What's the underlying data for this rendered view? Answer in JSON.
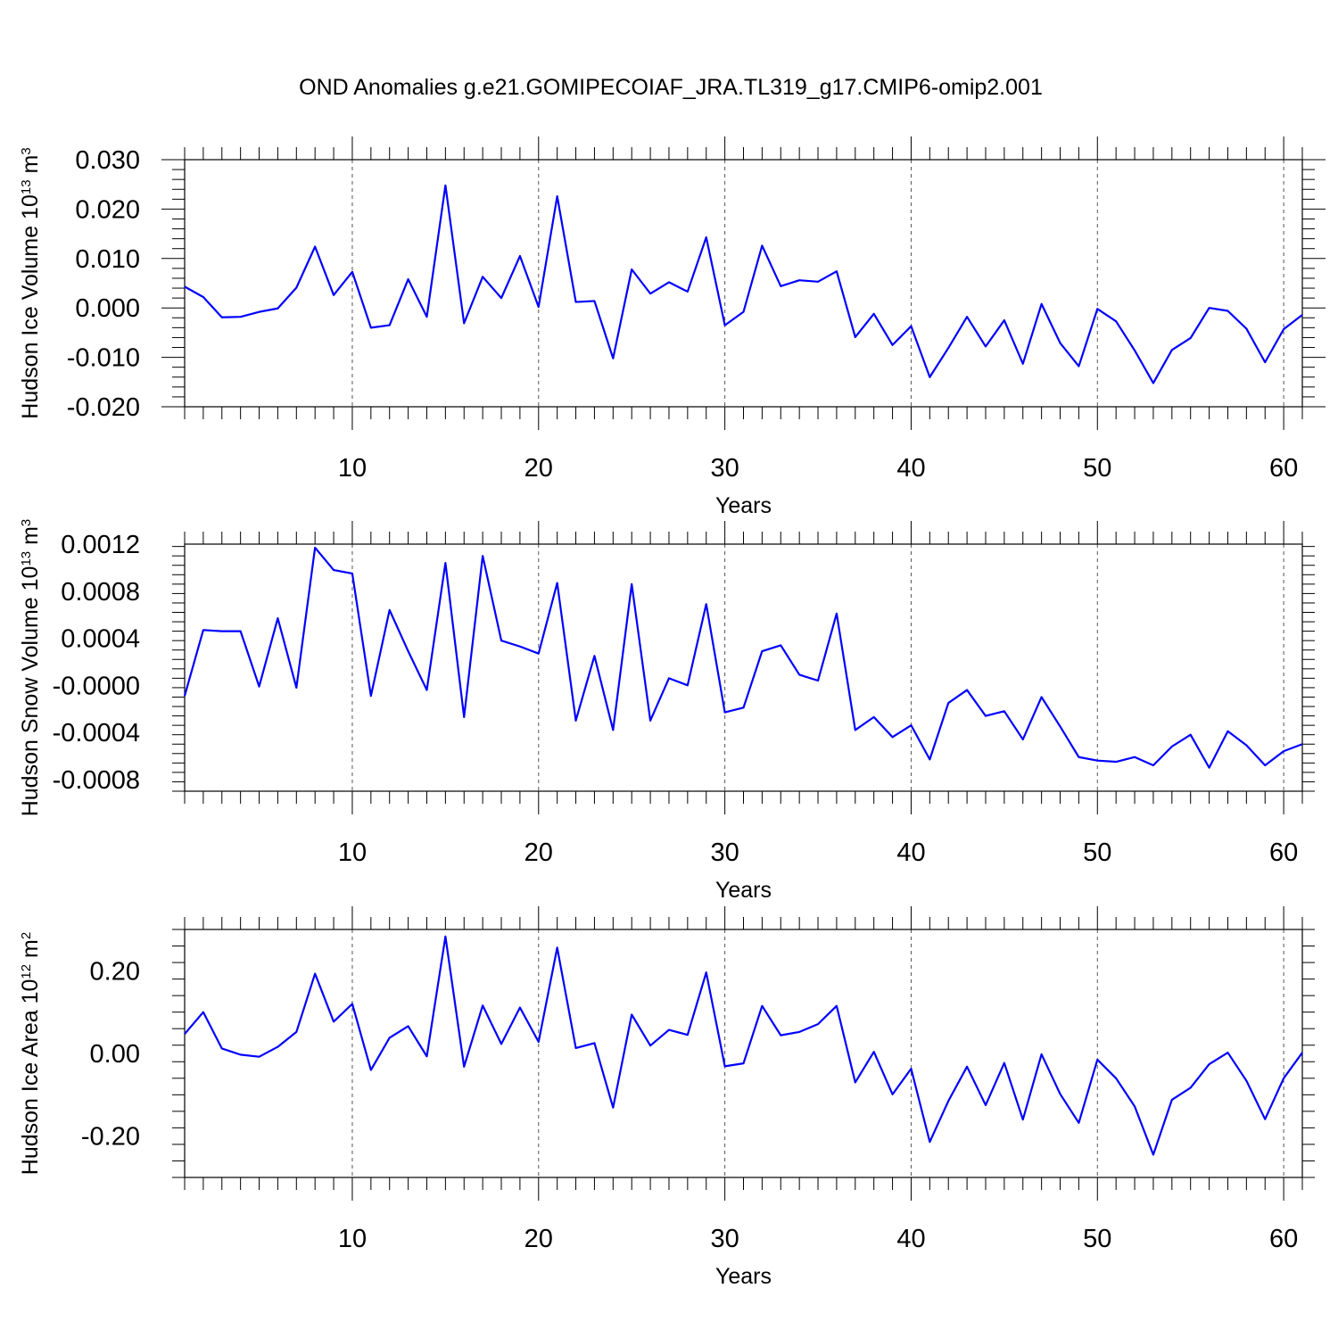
{
  "title": "OND Anomalies g.e21.GOMIPECOIAF_JRA.TL319_g17.CMIP6-omip2.001",
  "chart_data": [
    {
      "type": "line",
      "ylabel": {
        "text": "Hudson Ice Volume 10",
        "exp": "13",
        "unit": " m",
        "unit_exp": "3"
      },
      "xlabel": "Years",
      "xlim": [
        1,
        61
      ],
      "ylim": [
        -0.02,
        0.03
      ],
      "yticks": [
        -0.02,
        -0.01,
        0.0,
        0.01,
        0.02,
        0.03
      ],
      "ytick_labels": [
        "-0.020",
        "-0.010",
        "0.000",
        "0.010",
        "0.020",
        "0.030"
      ],
      "xticks": [
        10,
        20,
        30,
        40,
        50,
        60
      ],
      "xtick_labels": [
        "10",
        "20",
        "30",
        "40",
        "50",
        "60"
      ],
      "color": "#0000ff",
      "values": [
        0.0043,
        0.0022,
        -0.0019,
        -0.0018,
        -0.0008,
        -0.0001,
        0.0041,
        0.0124,
        0.0026,
        0.0073,
        -0.004,
        -0.0035,
        0.0058,
        -0.0018,
        0.0248,
        -0.0031,
        0.0063,
        0.002,
        0.0105,
        0.0002,
        0.0226,
        0.0012,
        0.0014,
        -0.0102,
        0.0078,
        0.0029,
        0.0052,
        0.0033,
        0.0143,
        -0.0035,
        -0.0008,
        0.0126,
        0.0044,
        0.0056,
        0.0053,
        0.0074,
        -0.0059,
        -0.0012,
        -0.0075,
        -0.0037,
        -0.014,
        -0.0081,
        -0.0018,
        -0.0078,
        -0.0025,
        -0.0113,
        0.0008,
        -0.0071,
        -0.0118,
        -0.0002,
        -0.0027,
        -0.0086,
        -0.0152,
        -0.0085,
        -0.0061,
        0.0,
        -0.0006,
        -0.0042,
        -0.011,
        -0.0043,
        -0.0014
      ]
    },
    {
      "type": "line",
      "ylabel": {
        "text": "Hudson Snow Volume 10",
        "exp": "13",
        "unit": " m",
        "unit_exp": "3"
      },
      "xlabel": "Years",
      "xlim": [
        1,
        61
      ],
      "ylim": [
        -0.0009,
        0.0012
      ],
      "yticks": [
        -0.0008,
        -0.0004,
        0.0,
        0.0004,
        0.0008,
        0.0012
      ],
      "ytick_labels": [
        "-0.0008",
        "-0.0004",
        "-0.0000",
        "0.0004",
        "0.0008",
        "0.0012"
      ],
      "xticks": [
        10,
        20,
        30,
        40,
        50,
        60
      ],
      "xtick_labels": [
        "10",
        "20",
        "30",
        "40",
        "50",
        "60"
      ],
      "color": "#0000ff",
      "values": [
        -9e-05,
        0.00047,
        0.00046,
        0.00046,
        -1e-05,
        0.00057,
        -2e-05,
        0.00117,
        0.00098,
        0.00095,
        -9e-05,
        0.00064,
        0.00029,
        -4e-05,
        0.00104,
        -0.00027,
        0.0011,
        0.00038,
        0.00033,
        0.00027,
        0.00087,
        -0.0003,
        0.00025,
        -0.00038,
        0.00086,
        -0.0003,
        6e-05,
        0.0,
        0.00069,
        -0.00023,
        -0.00019,
        0.00029,
        0.00034,
        9e-05,
        4e-05,
        0.00061,
        -0.00038,
        -0.00027,
        -0.00044,
        -0.00034,
        -0.00063,
        -0.00015,
        -4e-05,
        -0.00026,
        -0.00022,
        -0.00046,
        -0.0001,
        -0.00035,
        -0.00061,
        -0.00064,
        -0.00065,
        -0.00061,
        -0.00068,
        -0.00052,
        -0.00042,
        -0.0007,
        -0.00039,
        -0.00051,
        -0.00068,
        -0.00056,
        -0.0005
      ]
    },
    {
      "type": "line",
      "ylabel": {
        "text": "Hudson Ice Area 10",
        "exp": "12",
        "unit": " m",
        "unit_exp": "2"
      },
      "xlabel": "Years",
      "xlim": [
        1,
        61
      ],
      "ylim": [
        -0.3,
        0.3
      ],
      "yticks": [
        -0.2,
        0.0,
        0.2
      ],
      "ytick_labels": [
        "-0.20",
        "0.00",
        "0.20"
      ],
      "xticks": [
        10,
        20,
        30,
        40,
        50,
        60
      ],
      "xtick_labels": [
        "10",
        "20",
        "30",
        "40",
        "50",
        "60"
      ],
      "color": "#0000ff",
      "values": [
        0.047,
        0.1,
        0.012,
        -0.003,
        -0.008,
        0.016,
        0.052,
        0.193,
        0.077,
        0.12,
        -0.04,
        0.038,
        0.066,
        -0.007,
        0.283,
        -0.032,
        0.116,
        0.023,
        0.111,
        0.028,
        0.256,
        0.013,
        0.025,
        -0.131,
        0.094,
        0.019,
        0.057,
        0.045,
        0.196,
        -0.031,
        -0.024,
        0.115,
        0.044,
        0.052,
        0.071,
        0.115,
        -0.07,
        0.004,
        -0.099,
        -0.037,
        -0.214,
        -0.115,
        -0.032,
        -0.125,
        -0.023,
        -0.16,
        -0.002,
        -0.098,
        -0.168,
        -0.015,
        -0.06,
        -0.128,
        -0.245,
        -0.112,
        -0.083,
        -0.026,
        0.002,
        -0.066,
        -0.159,
        -0.06,
        0.002
      ]
    }
  ]
}
